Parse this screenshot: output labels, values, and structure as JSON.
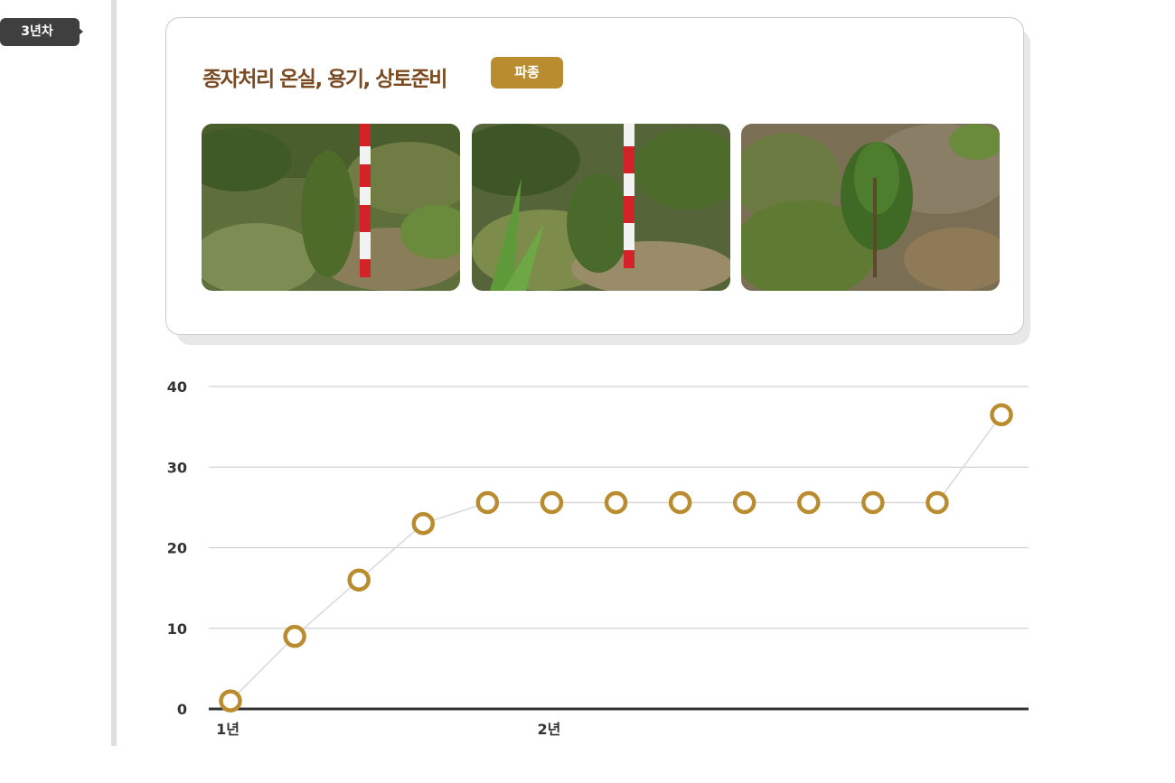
{
  "timeline": {
    "year_label": "3년차"
  },
  "card": {
    "title": "종자처리 온실, 용기, 상토준비",
    "stage_tag": "파종",
    "photos": [
      "seedling-photo",
      "seedling-photo",
      "seedling-photo"
    ]
  },
  "colors": {
    "accent": "#b98d2f",
    "title": "#7a4a22",
    "badge": "#3f3f3f",
    "grid": "#c8c8c8",
    "axis": "#333333",
    "line": "#d9d9d9",
    "photo_pole_red": "#d32228"
  },
  "chart_data": {
    "type": "line",
    "title": "",
    "xlabel": "",
    "ylabel": "",
    "ylim": [
      0,
      40
    ],
    "yticks": [
      0,
      10,
      20,
      30,
      40
    ],
    "x_tick_labels": [
      {
        "label": "1년",
        "index": 0
      },
      {
        "label": "2년",
        "index": 5
      }
    ],
    "grid": true,
    "series": [
      {
        "values": [
          1,
          9,
          16,
          23,
          25.6,
          25.6,
          25.6,
          25.6,
          25.6,
          25.6,
          25.6,
          25.6,
          36.5
        ]
      }
    ]
  }
}
